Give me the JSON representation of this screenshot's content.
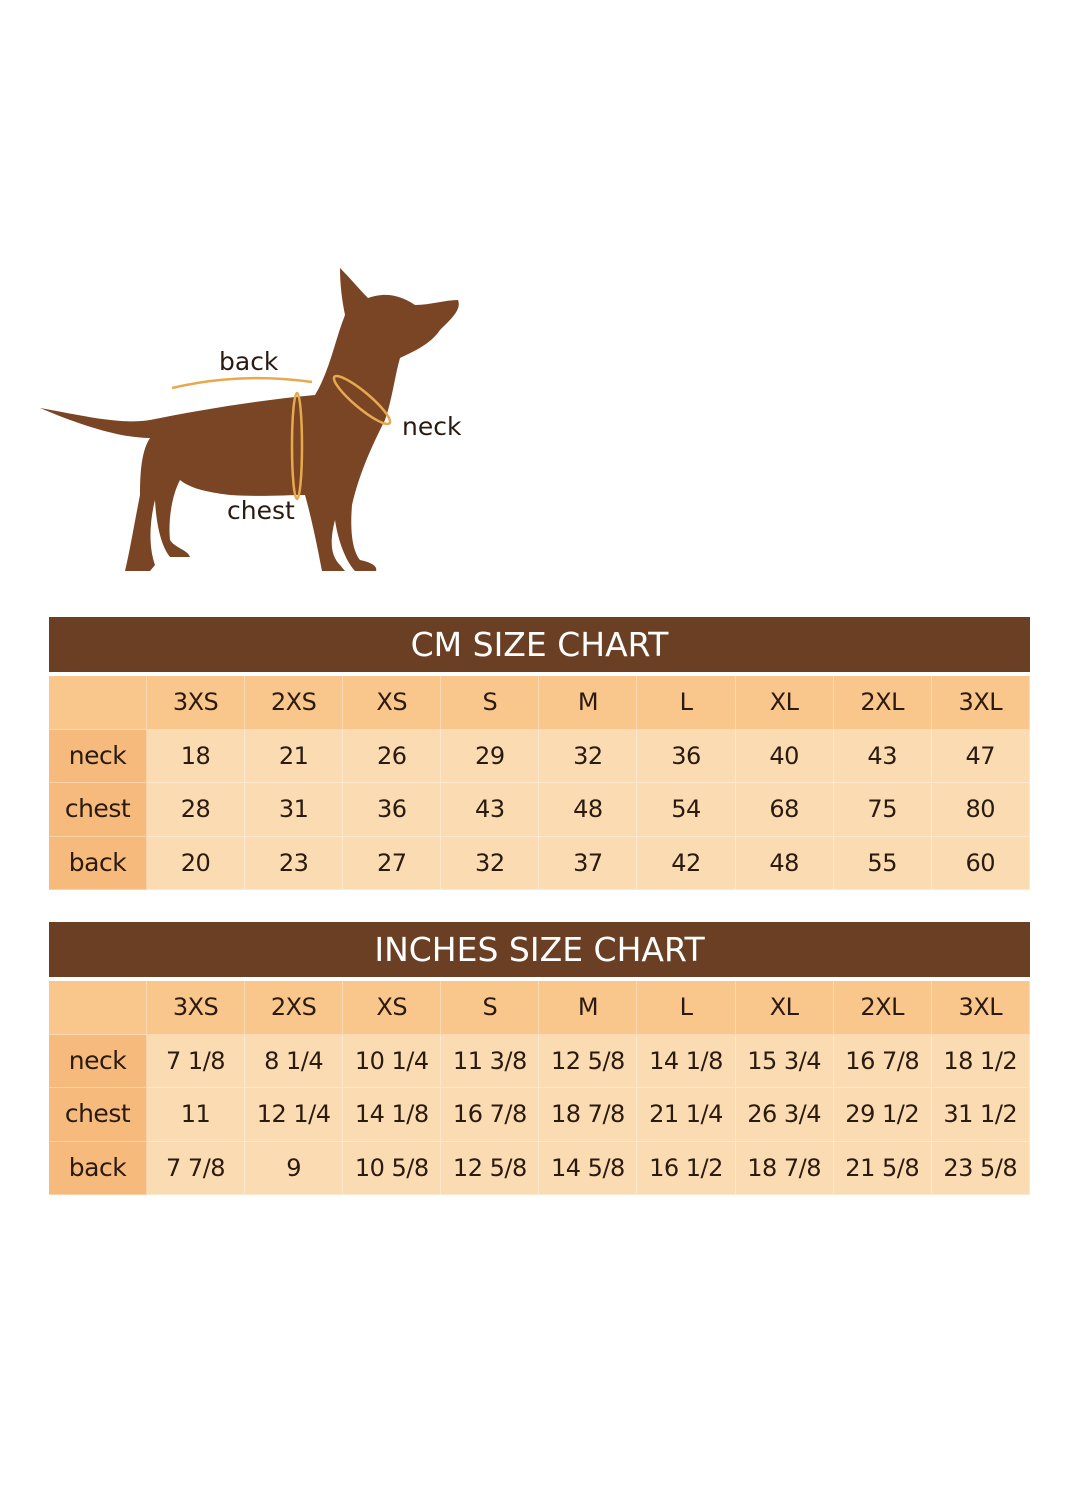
{
  "diagram": {
    "labels": {
      "back": "back",
      "neck": "neck",
      "chest": "chest"
    },
    "colors": {
      "dog": "#7a4524",
      "measure_line": "#e8a94e"
    }
  },
  "colors": {
    "title_bar": "#6b3f24",
    "header_row": "#f9c68c",
    "label_column": "#f6ba7c",
    "cells": "#fbdcb2"
  },
  "chart_data": [
    {
      "type": "table",
      "title": "CM SIZE CHART",
      "columns": [
        "3XS",
        "2XS",
        "XS",
        "S",
        "M",
        "L",
        "XL",
        "2XL",
        "3XL"
      ],
      "rows": [
        {
          "label": "neck",
          "values": [
            "18",
            "21",
            "26",
            "29",
            "32",
            "36",
            "40",
            "43",
            "47"
          ]
        },
        {
          "label": "chest",
          "values": [
            "28",
            "31",
            "36",
            "43",
            "48",
            "54",
            "68",
            "75",
            "80"
          ]
        },
        {
          "label": "back",
          "values": [
            "20",
            "23",
            "27",
            "32",
            "37",
            "42",
            "48",
            "55",
            "60"
          ]
        }
      ]
    },
    {
      "type": "table",
      "title": "INCHES SIZE CHART",
      "columns": [
        "3XS",
        "2XS",
        "XS",
        "S",
        "M",
        "L",
        "XL",
        "2XL",
        "3XL"
      ],
      "rows": [
        {
          "label": "neck",
          "values": [
            "7 1/8",
            "8 1/4",
            "10 1/4",
            "11 3/8",
            "12 5/8",
            "14 1/8",
            "15 3/4",
            "16 7/8",
            "18 1/2"
          ]
        },
        {
          "label": "chest",
          "values": [
            "11",
            "12 1/4",
            "14 1/8",
            "16 7/8",
            "18 7/8",
            "21 1/4",
            "26 3/4",
            "29 1/2",
            "31 1/2"
          ]
        },
        {
          "label": "back",
          "values": [
            "7 7/8",
            "9",
            "10 5/8",
            "12 5/8",
            "14 5/8",
            "16 1/2",
            "18 7/8",
            "21 5/8",
            "23 5/8"
          ]
        }
      ]
    }
  ]
}
